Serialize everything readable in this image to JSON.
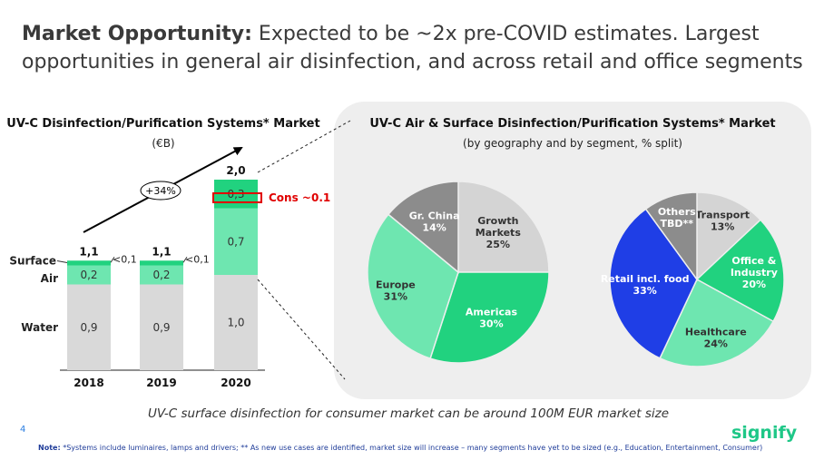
{
  "header": {
    "title_bold": "Market Opportunity:",
    "title_rest": " Expected to be ~2x pre-COVID estimates. Largest opportunities in general air disinfection, and across retail and office segments"
  },
  "left_chart": {
    "title": "UV-C Disinfection/Purification Systems* Market",
    "subtitle": "(€B)"
  },
  "right_chart": {
    "title": "UV-C Air & Surface Disinfection/Purification Systems* Market",
    "subtitle": "(by geography and by segment, % split)"
  },
  "annotations": {
    "growth_label": "+34%",
    "cons_label": "Cons ~0.1"
  },
  "footer": {
    "statement": "UV-C surface disinfection for consumer market can be around 100M EUR market size",
    "page_number": "4",
    "note_label": "Note:",
    "note_text": "*Systems include luminaires, lamps and drivers; ** As new use cases are identified, market size will increase – many segments have yet to be sized (e.g., Education, Entertainment, Consumer)",
    "logo": "signify"
  },
  "colors": {
    "water": "#d9d9d9",
    "air": "#6ee6b0",
    "surface": "#21d27f",
    "europe": "#6ee6b0",
    "gr_china": "#8c8c8c",
    "growth": "#d4d4d4",
    "americas": "#21d27f",
    "retail": "#1f3ee6",
    "others": "#8c8c8c",
    "transport": "#d4d4d4",
    "office": "#21d27f",
    "healthcare": "#6ee6b0",
    "accent_red": "#e00000"
  },
  "chart_data": [
    {
      "type": "bar",
      "stacked": true,
      "title": "UV-C Disinfection/Purification Systems* Market",
      "subtitle": "(€B)",
      "categories": [
        "2018",
        "2019",
        "2020"
      ],
      "series": [
        {
          "name": "Water",
          "values": [
            0.9,
            0.9,
            1.0
          ],
          "labels": [
            "0,9",
            "0,9",
            "1,0"
          ]
        },
        {
          "name": "Air",
          "values": [
            0.2,
            0.2,
            0.7
          ],
          "labels": [
            "0,2",
            "0,2",
            "0,7"
          ]
        },
        {
          "name": "Surface",
          "values": [
            0.05,
            0.05,
            0.3
          ],
          "labels": [
            "<0,1",
            "<0,1",
            "0,3"
          ]
        }
      ],
      "totals": [
        "1,1",
        "1,1",
        "2,0"
      ]
    },
    {
      "type": "pie",
      "title": "By geography",
      "slices": [
        {
          "label": "Growth Markets",
          "value": 25,
          "text": "25%"
        },
        {
          "label": "Americas",
          "value": 30,
          "text": "30%"
        },
        {
          "label": "Europe",
          "value": 31,
          "text": "31%"
        },
        {
          "label": "Gr. China",
          "value": 14,
          "text": "14%"
        }
      ]
    },
    {
      "type": "pie",
      "title": "By segment",
      "slices": [
        {
          "label": "Transport",
          "value": 13,
          "text": "13%"
        },
        {
          "label": "Office & Industry",
          "value": 20,
          "text": "20%"
        },
        {
          "label": "Healthcare",
          "value": 24,
          "text": "24%"
        },
        {
          "label": "Retail incl. food",
          "value": 33,
          "text": "33%"
        },
        {
          "label": "Others TBD**",
          "value": 10,
          "text": ""
        }
      ]
    }
  ]
}
